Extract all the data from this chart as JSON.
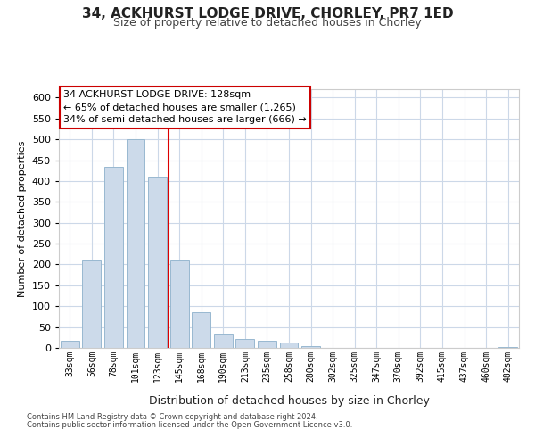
{
  "title": "34, ACKHURST LODGE DRIVE, CHORLEY, PR7 1ED",
  "subtitle": "Size of property relative to detached houses in Chorley",
  "xlabel": "Distribution of detached houses by size in Chorley",
  "ylabel": "Number of detached properties",
  "bar_labels": [
    "33sqm",
    "56sqm",
    "78sqm",
    "101sqm",
    "123sqm",
    "145sqm",
    "168sqm",
    "190sqm",
    "213sqm",
    "235sqm",
    "258sqm",
    "280sqm",
    "302sqm",
    "325sqm",
    "347sqm",
    "370sqm",
    "392sqm",
    "415sqm",
    "437sqm",
    "460sqm",
    "482sqm"
  ],
  "bar_values": [
    18,
    210,
    435,
    500,
    410,
    210,
    85,
    35,
    22,
    18,
    12,
    5,
    0,
    0,
    0,
    0,
    0,
    0,
    0,
    0,
    3
  ],
  "bar_color": "#ccdaea",
  "bar_edge_color": "#98b8d0",
  "vline_color": "#dd0000",
  "ylim": [
    0,
    620
  ],
  "yticks": [
    0,
    50,
    100,
    150,
    200,
    250,
    300,
    350,
    400,
    450,
    500,
    550,
    600
  ],
  "annotation_title": "34 ACKHURST LODGE DRIVE: 128sqm",
  "annotation_line1": "← 65% of detached houses are smaller (1,265)",
  "annotation_line2": "34% of semi-detached houses are larger (666) →",
  "annotation_box_color": "#ffffff",
  "annotation_box_edge": "#cc0000",
  "footer1": "Contains HM Land Registry data © Crown copyright and database right 2024.",
  "footer2": "Contains public sector information licensed under the Open Government Licence v3.0.",
  "bg_color": "#ffffff",
  "grid_color": "#ccd8e8"
}
